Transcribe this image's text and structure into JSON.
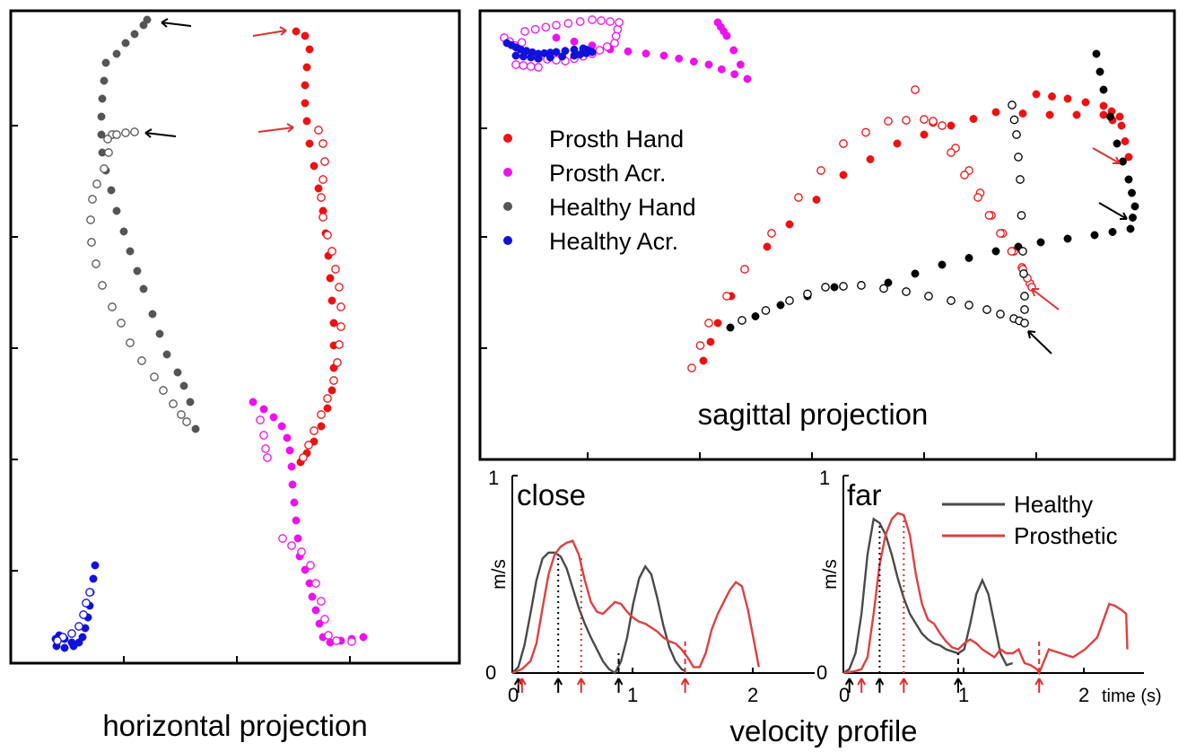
{
  "colors": {
    "prosth_hand": "#ee1111",
    "prosth_acr": "#ee11ee",
    "healthy_hand": "#555555",
    "healthy_acr": "#1111dd",
    "black": "#000000",
    "healthy_line": "#4a4a4a",
    "prosthetic_line": "#e04040"
  },
  "chart_data": [
    {
      "type": "scatter",
      "title": "horizontal projection",
      "xlabel": "",
      "ylabel": "",
      "grid": false,
      "note": "axis ticks only, no tick labels",
      "series": [
        {
          "name": "Healthy Hand (close, filled)",
          "points": [
            [
              118,
              70
            ],
            [
              116,
              90
            ],
            [
              114,
              110
            ],
            [
              113,
              130
            ],
            [
              113,
              150
            ],
            [
              114,
              170
            ],
            [
              118,
              190
            ],
            [
              124,
              212
            ],
            [
              130,
              235
            ],
            [
              138,
              258
            ],
            [
              145,
              280
            ],
            [
              153,
              302
            ],
            [
              160,
              322
            ],
            [
              170,
              350
            ],
            [
              178,
              372
            ],
            [
              186,
              395
            ],
            [
              198,
              415
            ],
            [
              205,
              430
            ],
            [
              212,
              448
            ],
            [
              218,
              478
            ]
          ]
        },
        {
          "name": "Healthy Hand (far, open)",
          "points": [
            [
              125,
              150
            ],
            [
              121,
              170
            ],
            [
              116,
              188
            ],
            [
              108,
              205
            ],
            [
              103,
              222
            ],
            [
              101,
              245
            ],
            [
              102,
              270
            ],
            [
              107,
              294
            ],
            [
              114,
              318
            ],
            [
              125,
              342
            ],
            [
              135,
              360
            ],
            [
              145,
              382
            ],
            [
              158,
              402
            ],
            [
              172,
              420
            ],
            [
              182,
              435
            ],
            [
              193,
              450
            ],
            [
              202,
              462
            ],
            [
              208,
              470
            ]
          ]
        },
        {
          "name": "Healthy Hand (end cluster top)",
          "points": [
            [
              130,
              60
            ],
            [
              140,
              48
            ],
            [
              150,
              38
            ],
            [
              160,
              28
            ],
            [
              164,
              22
            ]
          ]
        },
        {
          "name": "Healthy Hand (end cluster mid)",
          "points": [
            [
              120,
              155
            ],
            [
              130,
              150
            ],
            [
              140,
              148
            ],
            [
              150,
              147
            ]
          ]
        },
        {
          "name": "Prosth Hand (close, filled)",
          "points": [
            [
              330,
              35
            ],
            [
              340,
              40
            ],
            [
              345,
              55
            ],
            [
              342,
              75
            ],
            [
              340,
              95
            ],
            [
              340,
              115
            ],
            [
              342,
              135
            ],
            [
              345,
              160
            ],
            [
              350,
              185
            ],
            [
              355,
              210
            ],
            [
              360,
              235
            ],
            [
              363,
              260
            ],
            [
              366,
              285
            ],
            [
              368,
              310
            ],
            [
              370,
              335
            ],
            [
              372,
              360
            ],
            [
              372,
              385
            ],
            [
              372,
              410
            ],
            [
              370,
              435
            ],
            [
              365,
              455
            ],
            [
              358,
              475
            ],
            [
              350,
              492
            ],
            [
              342,
              505
            ],
            [
              335,
              515
            ]
          ]
        },
        {
          "name": "Prosth Hand (far, open)",
          "points": [
            [
              355,
              145
            ],
            [
              360,
              160
            ],
            [
              362,
              180
            ],
            [
              360,
              200
            ],
            [
              358,
              220
            ],
            [
              360,
              242
            ],
            [
              365,
              262
            ],
            [
              370,
              280
            ],
            [
              374,
              300
            ],
            [
              378,
              320
            ],
            [
              380,
              342
            ],
            [
              380,
              364
            ],
            [
              378,
              384
            ],
            [
              376,
              404
            ],
            [
              372,
              424
            ],
            [
              365,
              444
            ],
            [
              358,
              462
            ],
            [
              350,
              480
            ],
            [
              344,
              496
            ],
            [
              338,
              510
            ]
          ]
        },
        {
          "name": "Prosth Acr. (close)",
          "points": [
            [
              282,
              448
            ],
            [
              294,
              456
            ],
            [
              305,
              465
            ],
            [
              314,
              475
            ],
            [
              320,
              488
            ],
            [
              323,
              502
            ],
            [
              325,
              520
            ],
            [
              326,
              540
            ],
            [
              328,
              560
            ],
            [
              330,
              580
            ],
            [
              332,
              600
            ],
            [
              334,
              620
            ],
            [
              340,
              635
            ],
            [
              345,
              650
            ],
            [
              348,
              665
            ],
            [
              352,
              680
            ],
            [
              356,
              695
            ],
            [
              360,
              710
            ],
            [
              368,
              716
            ],
            [
              380,
              714
            ],
            [
              392,
              712
            ],
            [
              405,
              710
            ]
          ]
        },
        {
          "name": "Prosth Acr. (far)",
          "points": [
            [
              290,
              468
            ],
            [
              294,
              485
            ],
            [
              296,
              500
            ],
            [
              298,
              510
            ],
            [
              315,
              600
            ],
            [
              325,
              608
            ],
            [
              336,
              615
            ],
            [
              346,
              630
            ],
            [
              352,
              650
            ],
            [
              358,
              670
            ],
            [
              362,
              690
            ],
            [
              366,
              708
            ],
            [
              375,
              714
            ],
            [
              392,
              715
            ]
          ]
        },
        {
          "name": "Healthy Acr. (close)",
          "points": [
            [
              106,
              630
            ],
            [
              104,
              645
            ],
            [
              101,
              660
            ],
            [
              100,
              675
            ],
            [
              98,
              688
            ],
            [
              95,
              700
            ],
            [
              92,
              710
            ],
            [
              88,
              716
            ],
            [
              80,
              716
            ],
            [
              72,
              712
            ],
            [
              66,
              708
            ],
            [
              62,
              712
            ],
            [
              63,
              720
            ],
            [
              72,
              722
            ],
            [
              82,
              720
            ]
          ]
        },
        {
          "name": "Healthy Acr. (far)",
          "points": [
            [
              100,
              660
            ],
            [
              96,
              672
            ],
            [
              93,
              685
            ],
            [
              88,
              698
            ],
            [
              80,
              706
            ],
            [
              70,
              710
            ],
            [
              64,
              714
            ]
          ]
        }
      ],
      "annotations": {
        "black_arrows": 2,
        "red_arrows": 2
      }
    },
    {
      "type": "scatter",
      "title": "sagittal projection",
      "xlabel": "",
      "ylabel": "",
      "grid": false,
      "legend": {
        "position": "top-left",
        "entries": [
          "Prosth Hand",
          "Prosth Acr.",
          "Healthy Hand",
          "Healthy Acr."
        ]
      },
      "annotations": {
        "black_arrows": 2,
        "red_arrows": 2
      }
    },
    {
      "type": "line",
      "title": "close",
      "ylabel": "m/s",
      "xlabel": "",
      "x_ticks": [
        "0",
        "1",
        "2"
      ],
      "y_ticks": [
        "0",
        "1"
      ],
      "xlim": [
        0,
        2.45
      ],
      "ylim": [
        0,
        1
      ],
      "series": [
        {
          "name": "Healthy",
          "x": [
            0.0,
            0.05,
            0.1,
            0.15,
            0.2,
            0.25,
            0.3,
            0.35,
            0.4,
            0.45,
            0.5,
            0.55,
            0.6,
            0.65,
            0.7,
            0.75,
            0.8,
            0.85,
            0.9,
            0.95,
            1.0,
            1.05,
            1.1,
            1.15,
            1.2,
            1.25,
            1.3,
            1.35,
            1.4,
            1.43
          ],
          "y": [
            0.0,
            0.03,
            0.14,
            0.3,
            0.47,
            0.58,
            0.61,
            0.61,
            0.59,
            0.53,
            0.43,
            0.33,
            0.25,
            0.18,
            0.12,
            0.06,
            0.02,
            0.0,
            0.06,
            0.18,
            0.35,
            0.48,
            0.54,
            0.5,
            0.38,
            0.24,
            0.13,
            0.06,
            0.02,
            0.01
          ]
        },
        {
          "name": "Prosthetic",
          "x": [
            0.0,
            0.08,
            0.15,
            0.2,
            0.25,
            0.3,
            0.35,
            0.4,
            0.45,
            0.5,
            0.55,
            0.6,
            0.65,
            0.7,
            0.75,
            0.8,
            0.85,
            0.9,
            0.95,
            1.0,
            1.05,
            1.1,
            1.15,
            1.2,
            1.25,
            1.3,
            1.35,
            1.4,
            1.45,
            1.5,
            1.55,
            1.6,
            1.65,
            1.7,
            1.75,
            1.8,
            1.85,
            1.9,
            1.95,
            2.0,
            2.04
          ],
          "y": [
            0.0,
            0.02,
            0.06,
            0.15,
            0.33,
            0.5,
            0.6,
            0.64,
            0.66,
            0.67,
            0.6,
            0.47,
            0.36,
            0.31,
            0.3,
            0.33,
            0.36,
            0.35,
            0.31,
            0.28,
            0.26,
            0.25,
            0.23,
            0.21,
            0.18,
            0.16,
            0.15,
            0.12,
            0.08,
            0.03,
            0.03,
            0.1,
            0.22,
            0.3,
            0.36,
            0.42,
            0.46,
            0.44,
            0.32,
            0.16,
            0.03
          ]
        }
      ],
      "markers": {
        "black_arrows_x": [
          0.05,
          0.38,
          0.88
        ],
        "red_arrows_x": [
          0.08,
          0.57,
          1.43
        ],
        "black_dotted_x": 0.38,
        "red_dotted_x": 0.57,
        "black_dashed_x": 0.88,
        "red_dashed_x": 1.43
      }
    },
    {
      "type": "line",
      "title": "far",
      "ylabel": "m/s",
      "xlabel": "time (s)",
      "x_ticks": [
        "0",
        "1",
        "2"
      ],
      "y_ticks": [
        "0",
        "1"
      ],
      "xlim": [
        0,
        2.45
      ],
      "ylim": [
        0,
        1
      ],
      "legend": {
        "position": "top-right",
        "entries": [
          "Healthy",
          "Prosthetic"
        ]
      },
      "series": [
        {
          "name": "Healthy",
          "x": [
            0.0,
            0.05,
            0.1,
            0.15,
            0.2,
            0.25,
            0.3,
            0.35,
            0.4,
            0.45,
            0.5,
            0.55,
            0.6,
            0.65,
            0.7,
            0.75,
            0.8,
            0.85,
            0.9,
            0.95,
            1.0,
            1.05,
            1.1,
            1.15,
            1.2,
            1.25,
            1.3,
            1.35,
            1.4
          ],
          "y": [
            0.0,
            0.02,
            0.1,
            0.3,
            0.6,
            0.78,
            0.76,
            0.7,
            0.6,
            0.48,
            0.38,
            0.3,
            0.25,
            0.2,
            0.17,
            0.15,
            0.14,
            0.12,
            0.11,
            0.1,
            0.12,
            0.25,
            0.4,
            0.47,
            0.4,
            0.25,
            0.1,
            0.04,
            0.05
          ]
        },
        {
          "name": "Prosthetic",
          "x": [
            0.0,
            0.1,
            0.15,
            0.2,
            0.25,
            0.3,
            0.35,
            0.4,
            0.45,
            0.5,
            0.55,
            0.6,
            0.65,
            0.7,
            0.75,
            0.8,
            0.85,
            0.9,
            0.95,
            1.0,
            1.05,
            1.1,
            1.15,
            1.2,
            1.25,
            1.3,
            1.35,
            1.4,
            1.45,
            1.5,
            1.55,
            1.6,
            1.62,
            1.7,
            1.8,
            1.9,
            2.0,
            2.1,
            2.2,
            2.25,
            2.3,
            2.34,
            2.35
          ],
          "y": [
            0.0,
            0.01,
            0.02,
            0.08,
            0.3,
            0.55,
            0.7,
            0.78,
            0.81,
            0.8,
            0.7,
            0.5,
            0.35,
            0.27,
            0.25,
            0.2,
            0.16,
            0.13,
            0.12,
            0.15,
            0.17,
            0.15,
            0.12,
            0.1,
            0.08,
            0.12,
            0.1,
            0.1,
            0.12,
            0.05,
            0.04,
            0.02,
            0.0,
            0.12,
            0.1,
            0.08,
            0.12,
            0.18,
            0.35,
            0.34,
            0.32,
            0.3,
            0.12
          ]
        }
      ],
      "markers": {
        "black_arrows_x": [
          0.05,
          0.3,
          0.95
        ],
        "red_arrows_x": [
          0.15,
          0.5,
          1.62
        ],
        "black_dotted_x": 0.3,
        "red_dotted_x": 0.5,
        "black_dashed_x": 0.95,
        "red_dashed_x": 1.62
      }
    }
  ],
  "labels": {
    "horizontal_title": "horizontal projection",
    "sagittal_title": "sagittal projection",
    "velocity_title": "velocity profile",
    "legend_prosth_hand": "Prosth Hand",
    "legend_prosth_acr": "Prosth Acr.",
    "legend_healthy_hand": "Healthy Hand",
    "legend_healthy_acr": "Healthy Acr.",
    "close_label": "close",
    "far_label": "far",
    "ylabel": "m/s",
    "legend_healthy": "Healthy",
    "legend_prosthetic": "Prosthetic",
    "tick_0": "0",
    "tick_1": "1",
    "tick_2": "2",
    "time_label": "time (s)"
  }
}
